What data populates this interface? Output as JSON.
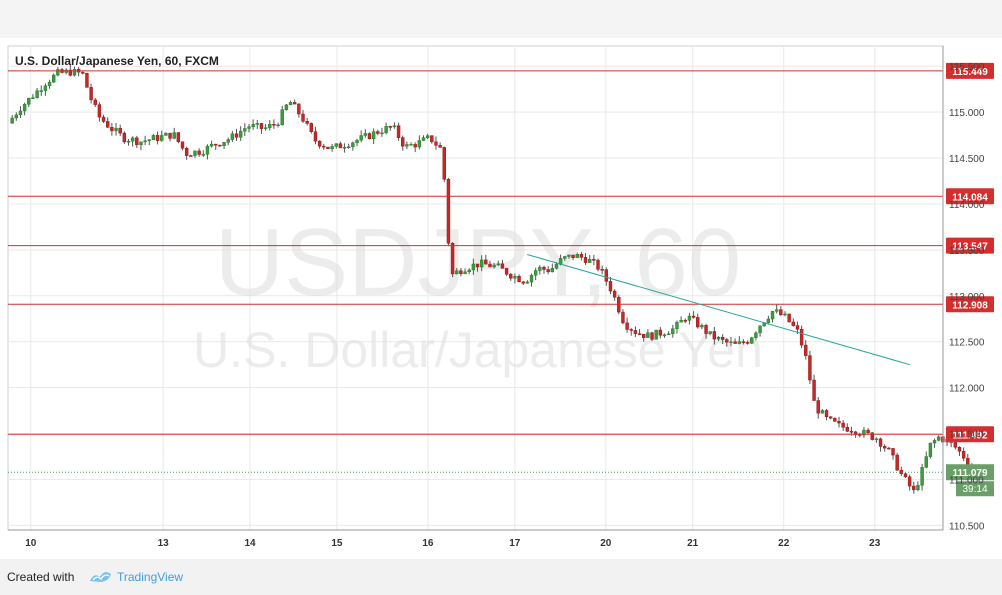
{
  "chart_data": {
    "type": "candlestick",
    "title": "U.S. Dollar/Japanese Yen, 60, FXCM",
    "watermark_symbol": "USDJPY, 60",
    "watermark_name": "U.S. Dollar/Japanese Yen",
    "y_ticks": [
      "115.500",
      "115.000",
      "114.500",
      "114.000",
      "113.500",
      "113.000",
      "112.500",
      "112.000",
      "111.500",
      "111.000",
      "110.500"
    ],
    "y_tick_values": [
      115.5,
      115.0,
      114.5,
      114.0,
      113.5,
      113.0,
      112.5,
      112.0,
      111.5,
      111.0,
      110.5
    ],
    "ylim": [
      110.45,
      115.72
    ],
    "x_ticks": [
      "10",
      "13",
      "14",
      "15",
      "16",
      "17",
      "20",
      "21",
      "22",
      "23"
    ],
    "x_tick_positions": [
      0.55,
      3.75,
      5.85,
      7.95,
      10.15,
      12.25,
      14.45,
      16.55,
      18.75,
      20.95
    ],
    "xlim": [
      0,
      22.6
    ],
    "horizontal_levels": [
      {
        "value": 115.449,
        "label": "115.449"
      },
      {
        "value": 114.084,
        "label": "114.084"
      },
      {
        "value": 113.547,
        "label": "113.547"
      },
      {
        "value": 112.908,
        "label": "112.908"
      },
      {
        "value": 111.492,
        "label": "111.492"
      }
    ],
    "last_price": {
      "value": 111.079,
      "label": "111.079",
      "countdown": "39:14"
    },
    "trendline": {
      "x1": 12.55,
      "y1": 113.45,
      "x2": 21.8,
      "y2": 112.25
    },
    "price_path": [
      [
        0.0,
        114.88
      ],
      [
        0.3,
        115.05
      ],
      [
        0.6,
        115.18
      ],
      [
        0.9,
        115.32
      ],
      [
        1.2,
        115.42
      ],
      [
        1.5,
        115.44
      ],
      [
        1.8,
        115.42
      ],
      [
        2.0,
        115.15
      ],
      [
        2.2,
        114.95
      ],
      [
        2.5,
        114.82
      ],
      [
        2.8,
        114.72
      ],
      [
        3.2,
        114.68
      ],
      [
        3.6,
        114.72
      ],
      [
        4.0,
        114.76
      ],
      [
        4.3,
        114.55
      ],
      [
        4.7,
        114.58
      ],
      [
        5.0,
        114.65
      ],
      [
        5.4,
        114.72
      ],
      [
        5.8,
        114.85
      ],
      [
        6.2,
        114.82
      ],
      [
        6.5,
        114.88
      ],
      [
        6.8,
        115.12
      ],
      [
        7.1,
        114.95
      ],
      [
        7.4,
        114.7
      ],
      [
        7.8,
        114.6
      ],
      [
        8.2,
        114.66
      ],
      [
        8.6,
        114.72
      ],
      [
        9.0,
        114.8
      ],
      [
        9.3,
        114.84
      ],
      [
        9.6,
        114.62
      ],
      [
        9.9,
        114.66
      ],
      [
        10.2,
        114.72
      ],
      [
        10.5,
        114.58
      ],
      [
        10.7,
        113.22
      ],
      [
        11.0,
        113.3
      ],
      [
        11.4,
        113.35
      ],
      [
        11.8,
        113.32
      ],
      [
        12.2,
        113.22
      ],
      [
        12.5,
        113.16
      ],
      [
        12.8,
        113.3
      ],
      [
        13.1,
        113.28
      ],
      [
        13.4,
        113.4
      ],
      [
        13.7,
        113.44
      ],
      [
        14.0,
        113.4
      ],
      [
        14.3,
        113.3
      ],
      [
        14.6,
        113.05
      ],
      [
        14.9,
        112.7
      ],
      [
        15.2,
        112.6
      ],
      [
        15.5,
        112.56
      ],
      [
        15.8,
        112.6
      ],
      [
        16.1,
        112.64
      ],
      [
        16.4,
        112.78
      ],
      [
        16.7,
        112.68
      ],
      [
        17.0,
        112.56
      ],
      [
        17.3,
        112.5
      ],
      [
        17.6,
        112.46
      ],
      [
        17.9,
        112.52
      ],
      [
        18.2,
        112.7
      ],
      [
        18.5,
        112.84
      ],
      [
        18.8,
        112.76
      ],
      [
        19.1,
        112.6
      ],
      [
        19.3,
        112.3
      ],
      [
        19.5,
        111.8
      ],
      [
        19.8,
        111.65
      ],
      [
        20.1,
        111.58
      ],
      [
        20.4,
        111.55
      ],
      [
        20.7,
        111.5
      ],
      [
        21.0,
        111.45
      ],
      [
        21.3,
        111.3
      ],
      [
        21.6,
        111.05
      ],
      [
        21.9,
        110.86
      ],
      [
        22.1,
        111.1
      ],
      [
        22.3,
        111.38
      ],
      [
        22.5,
        111.46
      ],
      [
        22.7,
        111.42
      ],
      [
        22.9,
        111.35
      ],
      [
        23.1,
        111.25
      ],
      [
        23.3,
        111.08
      ]
    ]
  },
  "footer": {
    "created_with": "Created with",
    "brand": "TradingView"
  },
  "colors": {
    "up": "#3a9c3a",
    "down": "#c62828",
    "level_line": "#d32f2f",
    "level_badge": "#d32f2f",
    "last_badge": "#6a9f6a",
    "trendline": "#26a69a",
    "grid": "#e9e9e9"
  }
}
